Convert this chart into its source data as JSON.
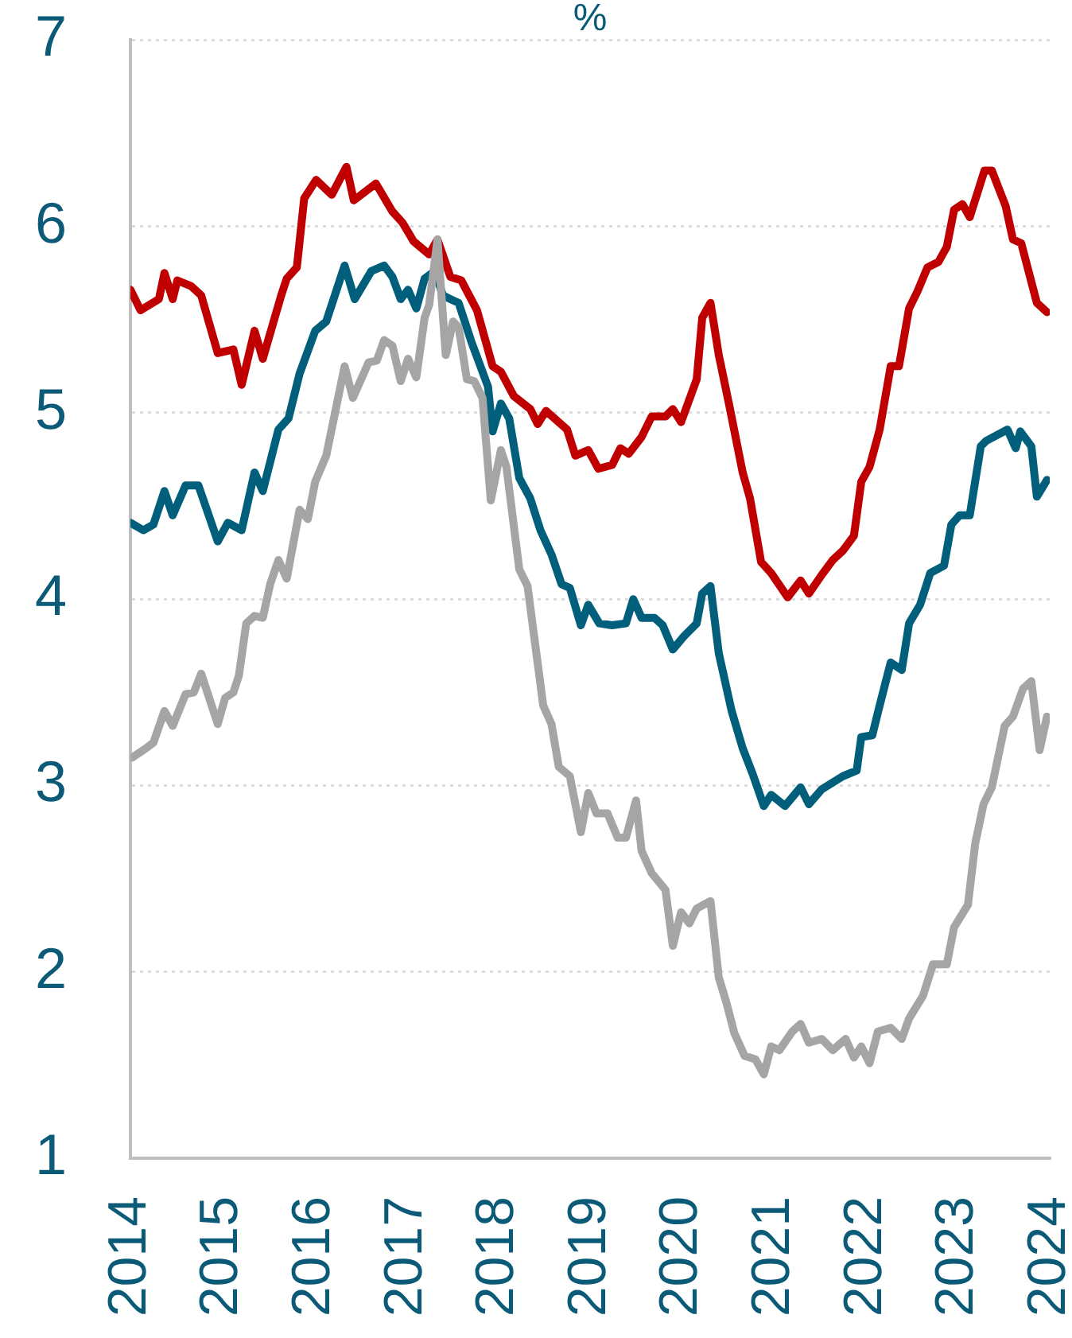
{
  "chart_data": {
    "type": "line",
    "title": "%",
    "xlim": [
      2014,
      2024
    ],
    "xticks": [
      2014,
      2015,
      2016,
      2017,
      2018,
      2019,
      2020,
      2021,
      2022,
      2023,
      2024
    ],
    "ylim": [
      1,
      7
    ],
    "yticks": [
      1,
      2,
      3,
      4,
      5,
      6,
      7
    ],
    "grid": "y",
    "marker": "none",
    "line_style": "solid",
    "series": [
      {
        "color": "#c00000",
        "x": [
          2014.0,
          2014.11,
          2014.31,
          2014.37,
          2014.46,
          2014.51,
          2014.66,
          2014.77,
          2014.95,
          2015.12,
          2015.21,
          2015.35,
          2015.44,
          2015.64,
          2015.7,
          2015.81,
          2015.89,
          2016.02,
          2016.19,
          2016.35,
          2016.43,
          2016.67,
          2016.85,
          2016.96,
          2017.08,
          2017.25,
          2017.34,
          2017.48,
          2017.6,
          2017.77,
          2017.94,
          2018.03,
          2018.17,
          2018.35,
          2018.43,
          2018.52,
          2018.75,
          2018.84,
          2018.98,
          2019.09,
          2019.24,
          2019.33,
          2019.42,
          2019.56,
          2019.67,
          2019.82,
          2019.9,
          2019.99,
          2020.16,
          2020.22,
          2020.31,
          2020.4,
          2020.51,
          2020.66,
          2020.74,
          2020.86,
          2020.97,
          2021.15,
          2021.29,
          2021.38,
          2021.52,
          2021.64,
          2021.75,
          2021.87,
          2021.95,
          2022.04,
          2022.15,
          2022.27,
          2022.36,
          2022.47,
          2022.56,
          2022.67,
          2022.79,
          2022.88,
          2022.96,
          2023.05,
          2023.13,
          2023.29,
          2023.37,
          2023.52,
          2023.6,
          2023.69,
          2023.86,
          2023.97
        ],
        "values": [
          5.66,
          5.55,
          5.61,
          5.75,
          5.61,
          5.71,
          5.68,
          5.63,
          5.32,
          5.34,
          5.15,
          5.44,
          5.29,
          5.63,
          5.72,
          5.78,
          6.15,
          6.25,
          6.17,
          6.32,
          6.14,
          6.23,
          6.08,
          6.02,
          5.92,
          5.85,
          5.93,
          5.73,
          5.71,
          5.55,
          5.25,
          5.22,
          5.09,
          5.02,
          4.94,
          5.01,
          4.91,
          4.77,
          4.8,
          4.7,
          4.72,
          4.81,
          4.78,
          4.87,
          4.98,
          4.98,
          5.02,
          4.95,
          5.18,
          5.51,
          5.59,
          5.31,
          5.05,
          4.68,
          4.54,
          4.2,
          4.14,
          4.01,
          4.1,
          4.03,
          4.13,
          4.21,
          4.26,
          4.34,
          4.63,
          4.71,
          4.91,
          5.25,
          5.25,
          5.56,
          5.65,
          5.78,
          5.81,
          5.89,
          6.09,
          6.12,
          6.05,
          6.3,
          6.3,
          6.11,
          5.93,
          5.91,
          5.59,
          5.54
        ]
      },
      {
        "color": "#015f7c",
        "x": [
          2014.0,
          2014.14,
          2014.25,
          2014.37,
          2014.46,
          2014.6,
          2014.74,
          2014.95,
          2015.06,
          2015.21,
          2015.35,
          2015.44,
          2015.61,
          2015.72,
          2015.84,
          2016.01,
          2016.13,
          2016.33,
          2016.44,
          2016.62,
          2016.76,
          2016.85,
          2016.94,
          2017.02,
          2017.11,
          2017.2,
          2017.31,
          2017.4,
          2017.48,
          2017.57,
          2017.71,
          2017.89,
          2017.94,
          2018.03,
          2018.12,
          2018.23,
          2018.35,
          2018.46,
          2018.58,
          2018.69,
          2018.78,
          2018.9,
          2018.98,
          2019.1,
          2019.24,
          2019.39,
          2019.47,
          2019.56,
          2019.7,
          2019.79,
          2019.9,
          2020.02,
          2020.16,
          2020.22,
          2020.31,
          2020.4,
          2020.54,
          2020.66,
          2020.77,
          2020.89,
          2020.97,
          2021.12,
          2021.29,
          2021.38,
          2021.52,
          2021.75,
          2021.9,
          2021.95,
          2022.07,
          2022.15,
          2022.27,
          2022.39,
          2022.47,
          2022.59,
          2022.7,
          2022.85,
          2022.93,
          2023.02,
          2023.13,
          2023.25,
          2023.31,
          2023.54,
          2023.63,
          2023.68,
          2023.8,
          2023.86,
          2023.97
        ],
        "values": [
          4.41,
          4.37,
          4.4,
          4.58,
          4.45,
          4.61,
          4.61,
          4.31,
          4.41,
          4.37,
          4.68,
          4.58,
          4.91,
          4.97,
          5.21,
          5.44,
          5.49,
          5.79,
          5.61,
          5.76,
          5.79,
          5.73,
          5.61,
          5.66,
          5.56,
          5.72,
          5.76,
          5.63,
          5.61,
          5.59,
          5.38,
          5.14,
          4.9,
          5.05,
          4.97,
          4.65,
          4.54,
          4.37,
          4.24,
          4.08,
          4.06,
          3.86,
          3.97,
          3.87,
          3.86,
          3.87,
          4.0,
          3.9,
          3.9,
          3.86,
          3.73,
          3.8,
          3.87,
          4.03,
          4.07,
          3.71,
          3.4,
          3.2,
          3.06,
          2.89,
          2.95,
          2.89,
          2.99,
          2.9,
          2.98,
          3.05,
          3.08,
          3.26,
          3.27,
          3.43,
          3.66,
          3.62,
          3.87,
          3.97,
          4.14,
          4.18,
          4.4,
          4.45,
          4.45,
          4.82,
          4.85,
          4.91,
          4.81,
          4.9,
          4.82,
          4.55,
          4.64
        ]
      },
      {
        "color": "#a5a5a5",
        "x": [
          2014.02,
          2014.17,
          2014.25,
          2014.37,
          2014.46,
          2014.6,
          2014.69,
          2014.77,
          2014.95,
          2015.03,
          2015.12,
          2015.18,
          2015.26,
          2015.35,
          2015.44,
          2015.52,
          2015.61,
          2015.7,
          2015.84,
          2015.93,
          2016.01,
          2016.13,
          2016.33,
          2016.42,
          2016.59,
          2016.68,
          2016.76,
          2016.85,
          2016.94,
          2017.02,
          2017.11,
          2017.2,
          2017.25,
          2017.34,
          2017.43,
          2017.51,
          2017.57,
          2017.66,
          2017.74,
          2017.83,
          2017.92,
          2018.03,
          2018.09,
          2018.23,
          2018.32,
          2018.49,
          2018.58,
          2018.66,
          2018.78,
          2018.9,
          2018.98,
          2019.07,
          2019.19,
          2019.3,
          2019.39,
          2019.5,
          2019.56,
          2019.67,
          2019.82,
          2019.9,
          2019.99,
          2020.08,
          2020.16,
          2020.31,
          2020.4,
          2020.48,
          2020.57,
          2020.68,
          2020.8,
          2020.89,
          2020.97,
          2021.06,
          2021.2,
          2021.29,
          2021.38,
          2021.52,
          2021.64,
          2021.78,
          2021.87,
          2021.95,
          2022.04,
          2022.13,
          2022.27,
          2022.39,
          2022.47,
          2022.62,
          2022.73,
          2022.88,
          2022.96,
          2023.11,
          2023.19,
          2023.28,
          2023.37,
          2023.51,
          2023.6,
          2023.71,
          2023.8,
          2023.89,
          2023.97
        ],
        "values": [
          3.15,
          3.2,
          3.23,
          3.4,
          3.32,
          3.49,
          3.5,
          3.6,
          3.33,
          3.47,
          3.5,
          3.59,
          3.87,
          3.91,
          3.9,
          4.08,
          4.21,
          4.11,
          4.48,
          4.43,
          4.63,
          4.77,
          5.25,
          5.08,
          5.27,
          5.28,
          5.39,
          5.36,
          5.17,
          5.29,
          5.19,
          5.51,
          5.58,
          5.93,
          5.31,
          5.49,
          5.46,
          5.18,
          5.17,
          5.08,
          4.53,
          4.8,
          4.71,
          4.16,
          4.07,
          3.43,
          3.33,
          3.1,
          3.05,
          2.75,
          2.96,
          2.85,
          2.85,
          2.72,
          2.72,
          2.92,
          2.65,
          2.53,
          2.44,
          2.14,
          2.32,
          2.26,
          2.34,
          2.38,
          1.97,
          1.84,
          1.67,
          1.55,
          1.53,
          1.45,
          1.6,
          1.58,
          1.68,
          1.72,
          1.62,
          1.64,
          1.58,
          1.64,
          1.54,
          1.6,
          1.51,
          1.68,
          1.7,
          1.64,
          1.75,
          1.87,
          2.04,
          2.04,
          2.24,
          2.36,
          2.69,
          2.9,
          2.99,
          3.32,
          3.37,
          3.52,
          3.56,
          3.19,
          3.37
        ]
      }
    ]
  }
}
